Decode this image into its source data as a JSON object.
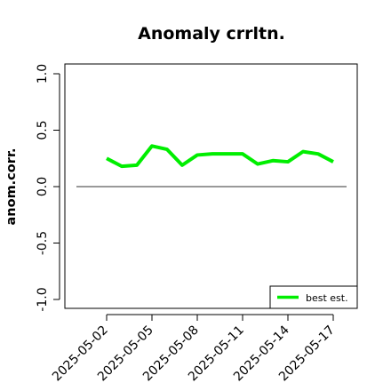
{
  "chart_data": {
    "type": "line",
    "title": "Anomaly crrltn.",
    "xlabel": "",
    "ylabel": "anom.corr.",
    "ylim": [
      -1.0,
      1.0
    ],
    "yticks": [
      "-1.0",
      "-0.5",
      "0.0",
      "0.5",
      "1.0"
    ],
    "ytick_values": [
      -1.0,
      -0.5,
      0.0,
      0.5,
      1.0
    ],
    "x": [
      "2025-05-02",
      "2025-05-03",
      "2025-05-04",
      "2025-05-05",
      "2025-05-06",
      "2025-05-07",
      "2025-05-08",
      "2025-05-09",
      "2025-05-10",
      "2025-05-11",
      "2025-05-12",
      "2025-05-13",
      "2025-05-14",
      "2025-05-15",
      "2025-05-16",
      "2025-05-17"
    ],
    "xtick_labels": [
      "2025-05-02",
      "2025-05-05",
      "2025-05-08",
      "2025-05-11",
      "2025-05-14",
      "2025-05-17"
    ],
    "highlighted_tick": "2025-05-08",
    "series": [
      {
        "name": "best est.",
        "color": "#00ee00",
        "values": [
          0.25,
          0.18,
          0.19,
          0.36,
          0.33,
          0.19,
          0.28,
          0.29,
          0.29,
          0.29,
          0.2,
          0.23,
          0.22,
          0.31,
          0.29,
          0.22
        ]
      }
    ],
    "reference_line": 0.0,
    "legend": "bottom-right",
    "grid": false
  },
  "colors": {
    "line": "#00ee00",
    "highlighted_tick": "#228b22",
    "axis": "#000000"
  }
}
